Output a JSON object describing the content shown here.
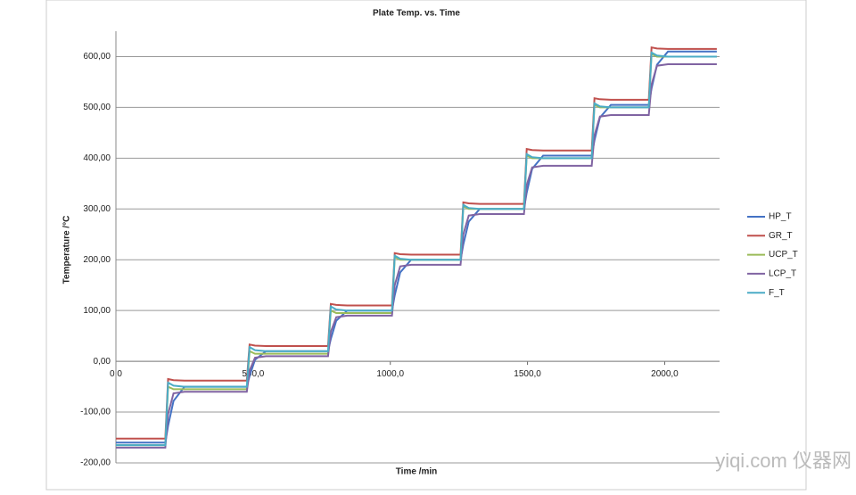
{
  "chart_data": {
    "type": "line",
    "title": "Plate Temp. vs. Time",
    "xlabel": "Time /min",
    "ylabel": "Temperature /°C",
    "x": [
      0,
      180,
      190,
      210,
      250,
      477,
      487,
      507,
      547,
      773,
      783,
      803,
      843,
      1006,
      1016,
      1036,
      1076,
      1256,
      1266,
      1286,
      1326,
      1487,
      1497,
      1517,
      1557,
      1734,
      1744,
      1764,
      1804,
      1942,
      1952,
      1972,
      2012,
      2190
    ],
    "series": [
      {
        "name": "HP_T",
        "color": "#4472c4",
        "values": [
          -160,
          -160,
          -127,
          -78,
          -50,
          -50,
          -29,
          3,
          20,
          20,
          44,
          80,
          100,
          100,
          130,
          175,
          200,
          200,
          230,
          275,
          300,
          300,
          332,
          379,
          405,
          405,
          435,
          480,
          505,
          505,
          537,
          584,
          610,
          610
        ]
      },
      {
        "name": "GR_T",
        "color": "#c0504d",
        "values": [
          -152,
          -152,
          -35,
          -37,
          -38,
          -38,
          33,
          31,
          30,
          30,
          113,
          111,
          110,
          110,
          213,
          211,
          210,
          210,
          313,
          311,
          310,
          310,
          418,
          416,
          415,
          415,
          518,
          516,
          515,
          515,
          618,
          616,
          615,
          615
        ]
      },
      {
        "name": "UCP_T",
        "color": "#9bbb59",
        "values": [
          -165,
          -165,
          -50,
          -55,
          -55,
          -55,
          20,
          15,
          15,
          15,
          100,
          95,
          95,
          95,
          205,
          200,
          200,
          200,
          305,
          300,
          300,
          300,
          405,
          400,
          400,
          400,
          505,
          500,
          500,
          500,
          605,
          600,
          600,
          600
        ]
      },
      {
        "name": "LCP_T",
        "color": "#8064a2",
        "values": [
          -170,
          -170,
          -104,
          -63,
          -60,
          -60,
          -18,
          7,
          10,
          10,
          58,
          87,
          90,
          90,
          150,
          187,
          190,
          190,
          250,
          287,
          290,
          290,
          347,
          382,
          385,
          385,
          445,
          482,
          485,
          485,
          545,
          582,
          585,
          585
        ]
      },
      {
        "name": "F_T",
        "color": "#4bacc6",
        "values": [
          -165,
          -165,
          -42,
          -48,
          -50,
          -50,
          28,
          22,
          20,
          20,
          108,
          102,
          100,
          100,
          208,
          202,
          200,
          200,
          308,
          302,
          300,
          300,
          408,
          402,
          400,
          400,
          508,
          502,
          500,
          500,
          608,
          602,
          600,
          600
        ]
      }
    ],
    "xlim": [
      0,
      2200
    ],
    "xticks": [
      {
        "value": 0,
        "label": "0,0"
      },
      {
        "value": 500,
        "label": "500,0"
      },
      {
        "value": 1000,
        "label": "1000,0"
      },
      {
        "value": 1500,
        "label": "1500,0"
      },
      {
        "value": 2000,
        "label": "2000,0"
      }
    ],
    "ylim": [
      -200,
      650
    ],
    "yticks": [
      {
        "value": -200,
        "label": "-200,00"
      },
      {
        "value": -100,
        "label": "-100,00"
      },
      {
        "value": 0,
        "label": "0,00"
      },
      {
        "value": 100,
        "label": "100,00"
      },
      {
        "value": 200,
        "label": "200,00"
      },
      {
        "value": 300,
        "label": "300,00"
      },
      {
        "value": 400,
        "label": "400,00"
      },
      {
        "value": 500,
        "label": "500,00"
      },
      {
        "value": 600,
        "label": "600,00"
      }
    ],
    "grid": true,
    "legend": "right",
    "watermark": "yiqi.com 仪器网"
  }
}
